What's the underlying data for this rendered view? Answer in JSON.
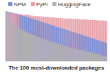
{
  "chart_data": {
    "type": "bar",
    "x_label": "The 100 most-downloaded packages",
    "categories": [
      null,
      null,
      null,
      null,
      null,
      null,
      null,
      null,
      null,
      null,
      null,
      null,
      null,
      null,
      null,
      null,
      null,
      null,
      null,
      null,
      null,
      null,
      null,
      null,
      null,
      null,
      null,
      null,
      null,
      null,
      null,
      null,
      null,
      null,
      null,
      null,
      null,
      null,
      null,
      null,
      null,
      null,
      null,
      null,
      null,
      null,
      null,
      null,
      null,
      null,
      null,
      null,
      null,
      null,
      null,
      null,
      null,
      null,
      null,
      null,
      null,
      null,
      null,
      null,
      null,
      null,
      null,
      null,
      null,
      null,
      null,
      null,
      null,
      null,
      null,
      null,
      null,
      null,
      null,
      null,
      null,
      null,
      null,
      null,
      null,
      null,
      null,
      null,
      null,
      null,
      null,
      null,
      null,
      null,
      null,
      null,
      null,
      null,
      null,
      null
    ],
    "series": [
      {
        "name": "NPM",
        "color": "#7b8fd6",
        "values": [
          100,
          99,
          99,
          98,
          98,
          97,
          97,
          96,
          96,
          95,
          95,
          94,
          94,
          93,
          92,
          92,
          91,
          90,
          90,
          89,
          88,
          88,
          87,
          86,
          86,
          85,
          84,
          84,
          83,
          82,
          82,
          81,
          80,
          80,
          79,
          78,
          78,
          77,
          76,
          76,
          75,
          74,
          74,
          73,
          72,
          72,
          71,
          70,
          70,
          69,
          68,
          68,
          67,
          66,
          66,
          65,
          64,
          64,
          63,
          62,
          62,
          61,
          60,
          60,
          59,
          58,
          58,
          57,
          56,
          56,
          55,
          54,
          54,
          53,
          52,
          52,
          51,
          50,
          50,
          49,
          48,
          48,
          47,
          46,
          46,
          45,
          44,
          44,
          43,
          42,
          42,
          41,
          40,
          40,
          39,
          38,
          38,
          37,
          36,
          36
        ]
      },
      {
        "name": "PyPi",
        "color": "#e8a0a8",
        "values": [
          98,
          98,
          97,
          97,
          97,
          96,
          96,
          96,
          95,
          95,
          95,
          95,
          94,
          94,
          94,
          93,
          93,
          93,
          93,
          92,
          92,
          92,
          92,
          91,
          91,
          91,
          91,
          90,
          90,
          90,
          90,
          90,
          89,
          89,
          89,
          89,
          89,
          88,
          88,
          88,
          88,
          88,
          88,
          87,
          87,
          87,
          87,
          87,
          87,
          86,
          86,
          86,
          86,
          86,
          86,
          86,
          85,
          85,
          85,
          85,
          85,
          85,
          85,
          85,
          84,
          84,
          84,
          84,
          84,
          84,
          84,
          84,
          83,
          83,
          83,
          83,
          83,
          83,
          83,
          83,
          83,
          82,
          82,
          82,
          82,
          82,
          82,
          82,
          82,
          82,
          81,
          81,
          81,
          81,
          81,
          81,
          81,
          81,
          80,
          80
        ]
      },
      {
        "name": "HuggingFace",
        "color": "#b3b3b3",
        "values": [
          90,
          86,
          83,
          80,
          78,
          76,
          74,
          72,
          71,
          70,
          68,
          67,
          66,
          65,
          64,
          63,
          62,
          61,
          60,
          59,
          58,
          57,
          56,
          55,
          54,
          53,
          52,
          52,
          51,
          50,
          49,
          48,
          47,
          47,
          46,
          45,
          44,
          44,
          43,
          42,
          41,
          41,
          40,
          39,
          39,
          38,
          37,
          37,
          36,
          35,
          35,
          34,
          33,
          33,
          32,
          32,
          31,
          30,
          30,
          29,
          29,
          28,
          27,
          27,
          26,
          26,
          25,
          25,
          24,
          24,
          23,
          23,
          22,
          22,
          21,
          21,
          20,
          20,
          19,
          19,
          18,
          18,
          17,
          17,
          16,
          16,
          15,
          15,
          14,
          14,
          13,
          13,
          12,
          12,
          11,
          10,
          10,
          9,
          8,
          7
        ]
      }
    ],
    "ylim": [
      0,
      100
    ],
    "legend": "top",
    "tick_labels": false
  }
}
